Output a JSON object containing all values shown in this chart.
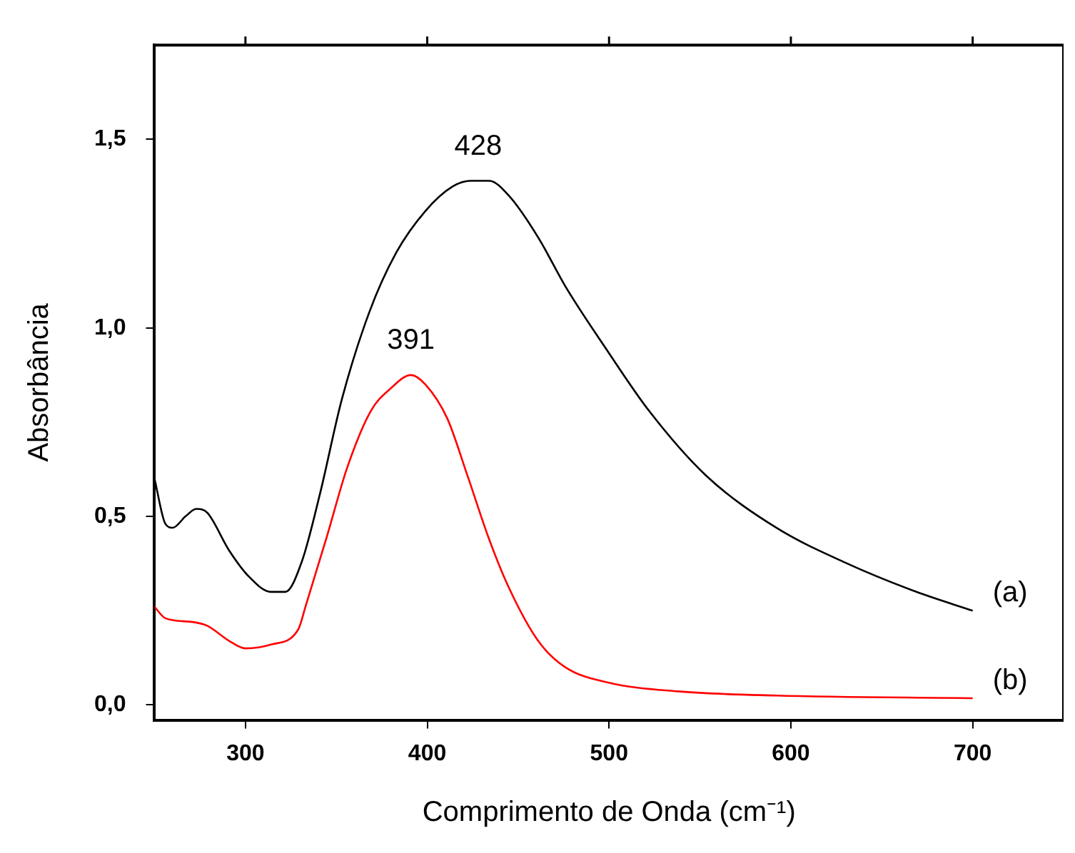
{
  "chart_data": {
    "type": "line",
    "xlabel": "Comprimento de Onda (cm⁻¹)",
    "ylabel": "Absorbância",
    "xlim": [
      250,
      750
    ],
    "ylim": [
      -0.04,
      1.75
    ],
    "xticks": [
      300,
      400,
      500,
      600,
      700
    ],
    "yticks": [
      {
        "value": 0,
        "label": "0,0"
      },
      {
        "value": 0.5,
        "label": "0,5"
      },
      {
        "value": 1,
        "label": "1,0"
      },
      {
        "value": 1.5,
        "label": "1,5"
      }
    ],
    "grid": false,
    "legend": false,
    "marker": "none",
    "line_style": "solid",
    "series": [
      {
        "name": "(a)",
        "color": "#000000",
        "x": [
          250,
          256,
          260,
          267,
          273,
          279,
          291,
          302,
          314,
          322,
          331,
          341,
          353,
          368,
          383,
          399,
          414,
          424,
          428,
          434,
          445,
          461,
          476,
          499,
          522,
          553,
          592,
          631,
          669,
          700
        ],
        "values": [
          0.6,
          0.48,
          0.47,
          0.5,
          0.52,
          0.51,
          0.41,
          0.34,
          0.3,
          0.3,
          0.38,
          0.56,
          0.81,
          1.04,
          1.2,
          1.31,
          1.375,
          1.39,
          1.39,
          1.39,
          1.35,
          1.24,
          1.11,
          0.94,
          0.78,
          0.61,
          0.47,
          0.375,
          0.3,
          0.25
        ]
      },
      {
        "name": "(b)",
        "color": "#ff0000",
        "x": [
          250,
          256,
          271,
          279,
          291,
          300,
          314,
          329,
          333,
          345,
          356,
          369,
          380,
          391,
          399,
          411,
          422,
          434,
          445,
          461,
          476,
          499,
          538,
          592,
          700
        ],
        "values": [
          0.26,
          0.23,
          0.22,
          0.21,
          0.17,
          0.15,
          0.16,
          0.2,
          0.26,
          0.45,
          0.63,
          0.78,
          0.84,
          0.875,
          0.85,
          0.76,
          0.61,
          0.44,
          0.31,
          0.17,
          0.1,
          0.06,
          0.036,
          0.025,
          0.018
        ]
      }
    ],
    "annotations": [
      {
        "text": "428",
        "x": 428,
        "y": 1.39
      },
      {
        "text": "391",
        "x": 391,
        "y": 0.875
      }
    ]
  }
}
